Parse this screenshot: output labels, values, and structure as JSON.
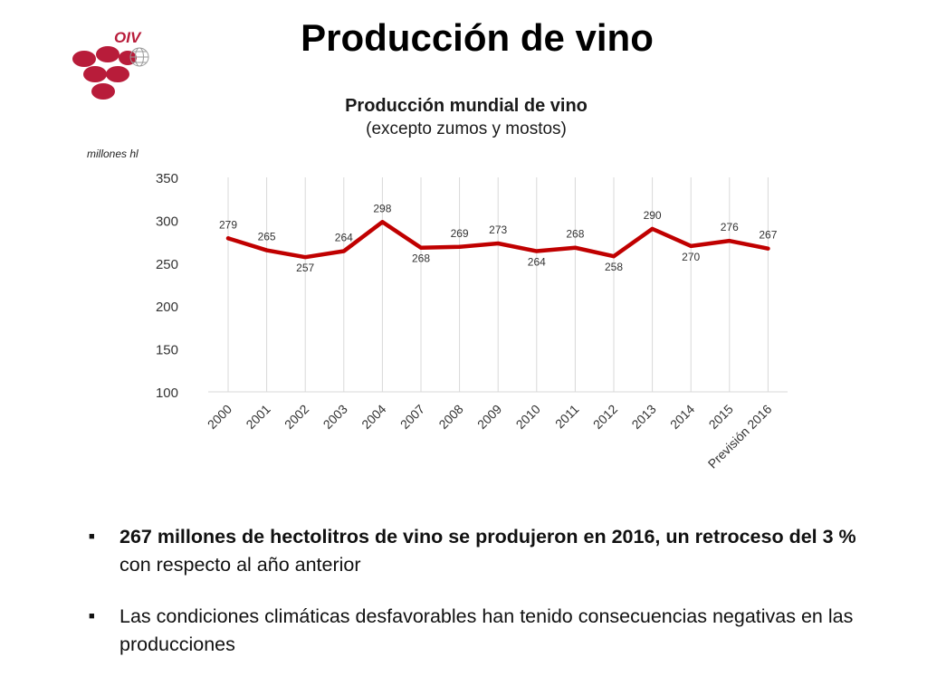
{
  "header": {
    "title": "Producción de vino",
    "logo_text": "OIV"
  },
  "colors": {
    "series": "#c00000",
    "logo": "#b81c3a",
    "grid": "#d9d9d9",
    "axis_text": "#333333"
  },
  "chart_data": {
    "type": "line",
    "title": "Producción mundial de vino",
    "subtitle": "(excepto zumos y mostos)",
    "ylabel": "millones hl",
    "xlabel": "",
    "categories": [
      "2000",
      "2001",
      "2002",
      "2003",
      "2004",
      "2007",
      "2008",
      "2009",
      "2010",
      "2011",
      "2012",
      "2013",
      "2014",
      "2015",
      "Previsión 2016"
    ],
    "series": [
      {
        "values": [
          279,
          265,
          257,
          264,
          298,
          268,
          269,
          273,
          264,
          268,
          258,
          290,
          270,
          276,
          267
        ]
      }
    ],
    "ylim": [
      100,
      350
    ],
    "yticks": [
      100,
      150,
      200,
      250,
      300,
      350
    ],
    "grid": "vertical",
    "legend": "none",
    "data_labels": true
  },
  "bullets": [
    {
      "marker": "■",
      "bold": "267 millones de hectolitros de vino se produjeron en 2016, un retroceso del 3 %",
      "text": " con respecto al año anterior"
    },
    {
      "marker": "■",
      "bold": "",
      "text": "Las condiciones climáticas desfavorables han tenido consecuencias negativas en las producciones"
    }
  ]
}
